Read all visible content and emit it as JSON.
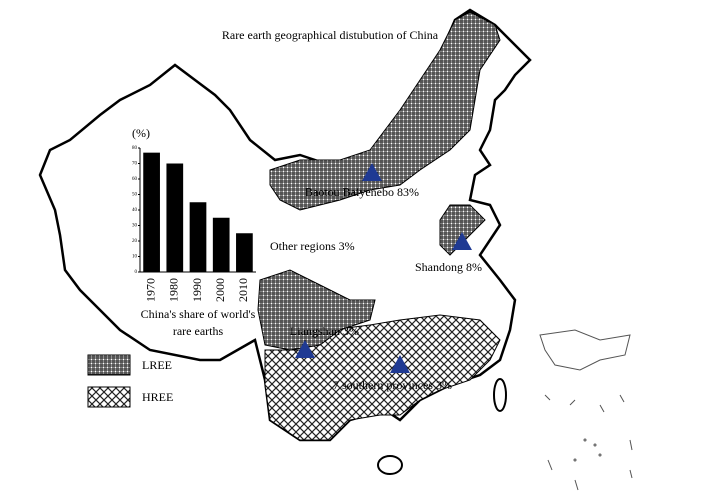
{
  "title": "Rare earth geographical distubution of China",
  "map": {
    "labels": [
      "Baotou Baiyenebo 83%",
      "Other regions 3%",
      "Shandong 8%",
      "Liangshan 3%",
      "7 southern provinces 3%"
    ],
    "legend": [
      "LREE",
      "HREE"
    ]
  },
  "chart_data": {
    "type": "bar",
    "ylabel": "(%)",
    "caption": [
      "China's share of world's",
      "rare earths"
    ],
    "categories": [
      "1970",
      "1980",
      "1990",
      "2000",
      "2010"
    ],
    "values": [
      77,
      70,
      45,
      35,
      25
    ],
    "color": "#000000",
    "ylim": [
      0,
      80
    ],
    "yticks": [
      0,
      10,
      20,
      30,
      40,
      50,
      60,
      70,
      80
    ]
  }
}
